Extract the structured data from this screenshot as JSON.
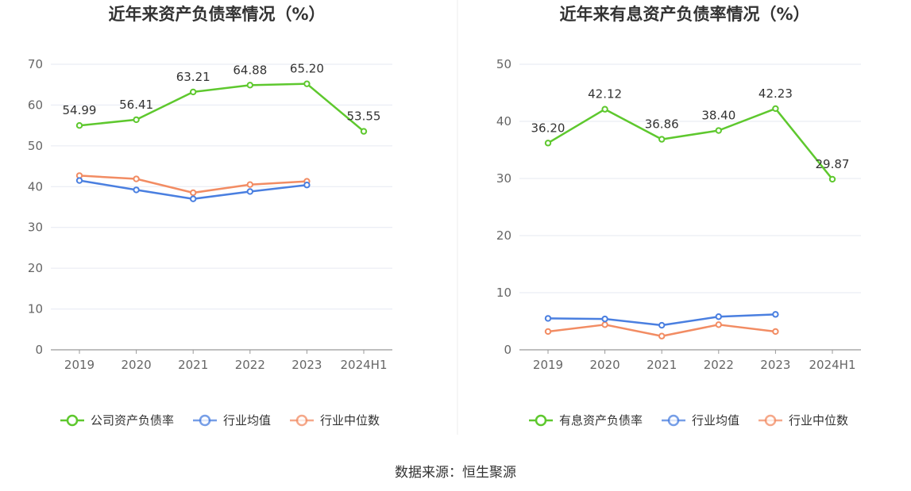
{
  "source": "数据来源：恒生聚源",
  "chart_data": [
    {
      "type": "line",
      "title": "近年来资产负债率情况（%）",
      "categories": [
        "2019",
        "2020",
        "2021",
        "2022",
        "2023",
        "2024H1"
      ],
      "ylim": [
        0,
        70
      ],
      "yticks": [
        0,
        10,
        20,
        30,
        40,
        50,
        60,
        70
      ],
      "grid": true,
      "legend_position": "bottom",
      "series": [
        {
          "name": "公司资产负债率",
          "color": "#5ec82e",
          "values": [
            54.99,
            56.41,
            63.21,
            64.88,
            65.2,
            53.55
          ],
          "labels": [
            "54.99",
            "56.41",
            "63.21",
            "64.88",
            "65.20",
            "53.55"
          ]
        },
        {
          "name": "行业均值",
          "color": "#4a7fe0",
          "values": [
            41.5,
            39.2,
            37.0,
            38.8,
            40.4,
            null
          ]
        },
        {
          "name": "行业中位数",
          "color": "#f28c63",
          "values": [
            42.7,
            41.9,
            38.5,
            40.5,
            41.3,
            null
          ]
        }
      ]
    },
    {
      "type": "line",
      "title": "近年来有息资产负债率情况（%）",
      "categories": [
        "2019",
        "2020",
        "2021",
        "2022",
        "2023",
        "2024H1"
      ],
      "ylim": [
        0,
        50
      ],
      "yticks": [
        0,
        10,
        20,
        30,
        40,
        50
      ],
      "grid": true,
      "legend_position": "bottom",
      "series": [
        {
          "name": "有息资产负债率",
          "color": "#5ec82e",
          "values": [
            36.2,
            42.12,
            36.86,
            38.4,
            42.23,
            29.87
          ],
          "labels": [
            "36.20",
            "42.12",
            "36.86",
            "38.40",
            "42.23",
            "29.87"
          ]
        },
        {
          "name": "行业均值",
          "color": "#4a7fe0",
          "values": [
            5.5,
            5.4,
            4.3,
            5.8,
            6.2,
            null
          ]
        },
        {
          "name": "行业中位数",
          "color": "#f28c63",
          "values": [
            3.2,
            4.4,
            2.4,
            4.4,
            3.2,
            null
          ]
        }
      ]
    }
  ]
}
